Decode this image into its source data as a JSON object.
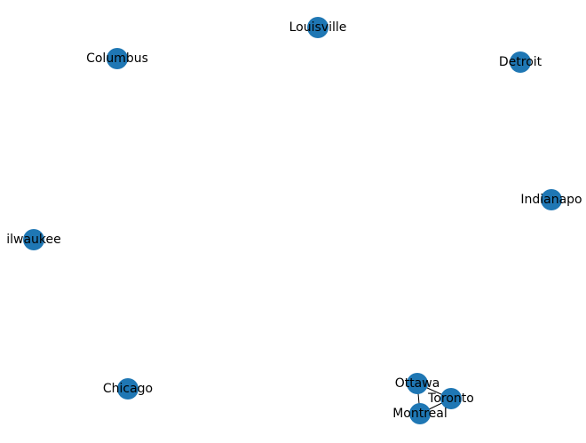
{
  "graph": {
    "node_color": "#1f77b4",
    "edge_color": "#000000",
    "nodes": [
      {
        "id": "louisville",
        "label": "Louisville"
      },
      {
        "id": "columbus",
        "label": "Columbus"
      },
      {
        "id": "detroit",
        "label": "Detroit"
      },
      {
        "id": "indianapolis",
        "label": "Indianapo"
      },
      {
        "id": "milwaukee",
        "label": "ilwaukee"
      },
      {
        "id": "chicago",
        "label": "Chicago"
      },
      {
        "id": "ottawa",
        "label": "Ottawa"
      },
      {
        "id": "toronto",
        "label": "Toronto"
      },
      {
        "id": "montreal",
        "label": "Montreal"
      }
    ],
    "edges": [
      [
        "ottawa",
        "toronto"
      ],
      [
        "ottawa",
        "montreal"
      ],
      [
        "toronto",
        "montreal"
      ]
    ]
  }
}
